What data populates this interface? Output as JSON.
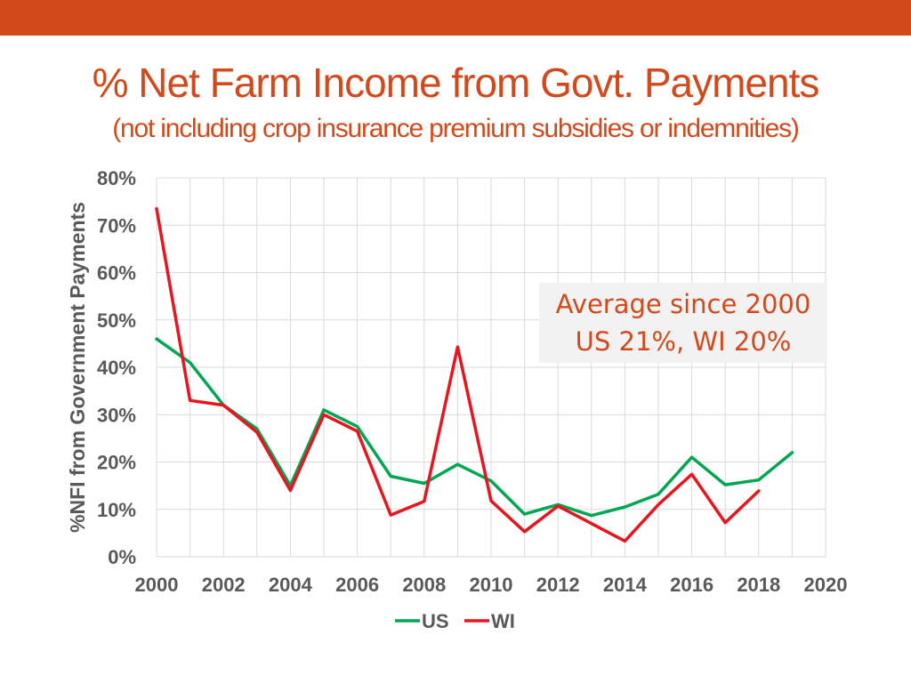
{
  "slide": {
    "title": "% Net Farm Income from Govt. Payments",
    "subtitle": "(not including crop insurance premium subsidies or indemnities)",
    "accent_color": "#d24a1c"
  },
  "annotation": {
    "line1": "Average since 2000",
    "line2": "US 21%, WI 20%"
  },
  "chart_data": {
    "type": "line",
    "title": "",
    "xlabel": "",
    "ylabel": "%NFI from Government Payments",
    "xlim": [
      2000,
      2020
    ],
    "ylim": [
      0,
      80
    ],
    "x_ticks": [
      2000,
      2002,
      2004,
      2006,
      2008,
      2010,
      2012,
      2014,
      2016,
      2018,
      2020
    ],
    "x_tick_labels": [
      "2000",
      "2002",
      "2004",
      "2006",
      "2008",
      "2010",
      "2012",
      "2014",
      "2016",
      "2018",
      "2020"
    ],
    "y_ticks": [
      0,
      10,
      20,
      30,
      40,
      50,
      60,
      70,
      80
    ],
    "y_tick_labels": [
      "0%",
      "10%",
      "20%",
      "30%",
      "40%",
      "50%",
      "60%",
      "70%",
      "80%"
    ],
    "grid": true,
    "legend_position": "bottom",
    "series": [
      {
        "name": "US",
        "color": "#00a651",
        "x": [
          2000,
          2001,
          2002,
          2003,
          2004,
          2005,
          2006,
          2007,
          2008,
          2009,
          2010,
          2011,
          2012,
          2013,
          2014,
          2015,
          2016,
          2017,
          2018,
          2019
        ],
        "values": [
          46,
          41,
          32,
          27,
          15,
          31,
          27.5,
          17,
          15.5,
          19.5,
          16,
          9,
          11,
          8.7,
          10.5,
          13.2,
          21,
          15.2,
          16.2,
          22
        ]
      },
      {
        "name": "WI",
        "color": "#e8141e",
        "x": [
          2000,
          2001,
          2002,
          2003,
          2004,
          2005,
          2006,
          2007,
          2008,
          2009,
          2010,
          2011,
          2012,
          2013,
          2014,
          2015,
          2016,
          2017,
          2018
        ],
        "values": [
          73.5,
          33,
          32,
          26.3,
          14,
          30,
          26.5,
          8.8,
          11.7,
          44.3,
          11.8,
          5.3,
          10.7,
          7,
          3.3,
          11,
          17.4,
          7.2,
          13.9
        ]
      }
    ]
  }
}
